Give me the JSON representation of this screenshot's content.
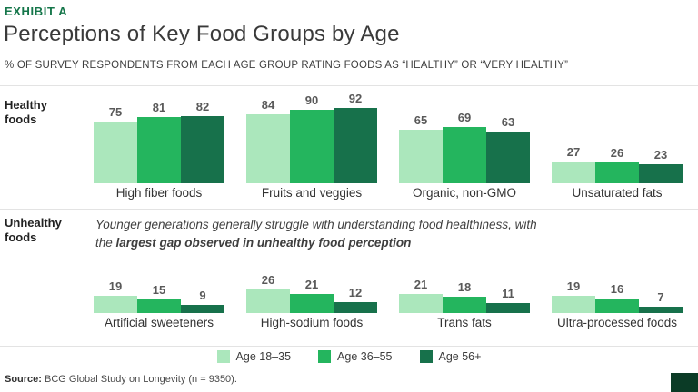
{
  "header": {
    "exhibit_label": "EXHIBIT A",
    "title": "Perceptions of Key Food Groups by Age",
    "subtitle": "% OF SURVEY RESPONDENTS FROM EACH AGE GROUP RATING FOODS AS “HEALTHY” OR “VERY HEALTHY”"
  },
  "colors": {
    "accent_green": "#15764A",
    "age_18_35": "#ABE7BC",
    "age_36_55": "#24B55E",
    "age_56_plus": "#17714B",
    "corner_square": "#0B3B26"
  },
  "chart_data": {
    "type": "bar",
    "title": "Perceptions of Key Food Groups by Age",
    "subtitle": "% OF SURVEY RESPONDENTS FROM EACH AGE GROUP RATING FOODS AS “HEALTHY” OR “VERY HEALTHY”",
    "legend_position": "bottom",
    "legend": [
      {
        "label": "Age 18–35",
        "color": "#ABE7BC"
      },
      {
        "label": "Age 36–55",
        "color": "#24B55E"
      },
      {
        "label": "Age 56+",
        "color": "#17714B"
      }
    ],
    "rows": [
      {
        "label": "Healthy foods",
        "ylim": [
          0,
          100
        ],
        "categories": [
          "High fiber foods",
          "Fruits and veggies",
          "Organic, non-GMO",
          "Unsaturated fats"
        ],
        "series": [
          {
            "name": "Age 18–35",
            "values": [
              75,
              84,
              65,
              27
            ]
          },
          {
            "name": "Age 36–55",
            "values": [
              81,
              90,
              69,
              26
            ]
          },
          {
            "name": "Age 56+",
            "values": [
              82,
              92,
              63,
              23
            ]
          }
        ]
      },
      {
        "label": "Unhealthy foods",
        "ylim": [
          0,
          30
        ],
        "categories": [
          "Artificial sweeteners",
          "High-sodium foods",
          "Trans fats",
          "Ultra-processed foods"
        ],
        "series": [
          {
            "name": "Age 18–35",
            "values": [
              19,
              26,
              21,
              19
            ]
          },
          {
            "name": "Age 36–55",
            "values": [
              15,
              21,
              18,
              16
            ]
          },
          {
            "name": "Age 56+",
            "values": [
              9,
              12,
              11,
              7
            ]
          }
        ]
      }
    ]
  },
  "annotation": {
    "regular": "Younger generations generally struggle with understanding food healthiness, with the ",
    "bold": "largest gap observed in unhealthy food perception"
  },
  "footer": {
    "source_label": "Source:",
    "source_text": " BCG Global Study on Longevity (n = 9350)."
  }
}
